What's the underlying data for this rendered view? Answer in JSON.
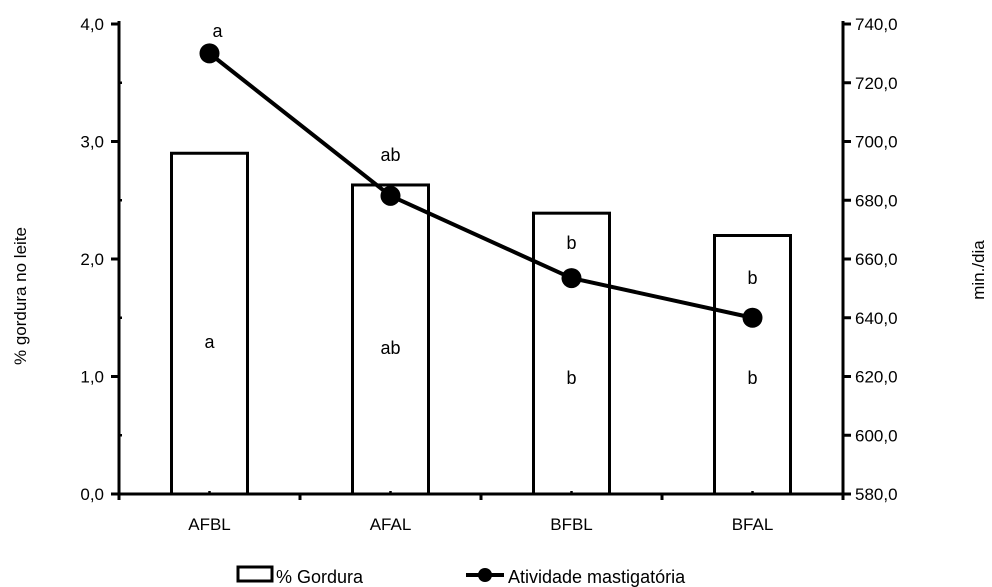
{
  "chart_data": {
    "type": "bar+line",
    "categories": [
      "AFBL",
      "AFAL",
      "BFBL",
      "BFAL"
    ],
    "series": [
      {
        "name": "% Gordura",
        "type": "bar",
        "axis": "left",
        "values": [
          2.9,
          2.63,
          2.39,
          2.2
        ],
        "annotations": [
          "a",
          "ab",
          "b",
          "b"
        ]
      },
      {
        "name": "Atividade mastigatória",
        "type": "line",
        "axis": "right",
        "values": [
          730,
          681.5,
          653.5,
          640
        ],
        "annotations": [
          "a",
          "ab",
          "b",
          "b"
        ]
      }
    ],
    "y_left": {
      "label": "% gordura no leite",
      "lim": [
        0,
        4
      ],
      "ticks": [
        "0,0",
        "1,0",
        "2,0",
        "3,0",
        "4,0"
      ],
      "tick_values": [
        0,
        1,
        2,
        3,
        4
      ]
    },
    "y_right": {
      "label": "min./dia",
      "lim": [
        580,
        740
      ],
      "ticks": [
        "580,0",
        "600,0",
        "620,0",
        "640,0",
        "660,0",
        "680,0",
        "700,0",
        "720,0",
        "740,0"
      ],
      "tick_values": [
        580,
        600,
        620,
        640,
        660,
        680,
        700,
        720,
        740
      ]
    },
    "xlabel": "",
    "grid": false,
    "legend": "bottom-center",
    "colors": {
      "bar_fill": "#ffffff",
      "stroke": "#000000",
      "line": "#000000"
    }
  }
}
